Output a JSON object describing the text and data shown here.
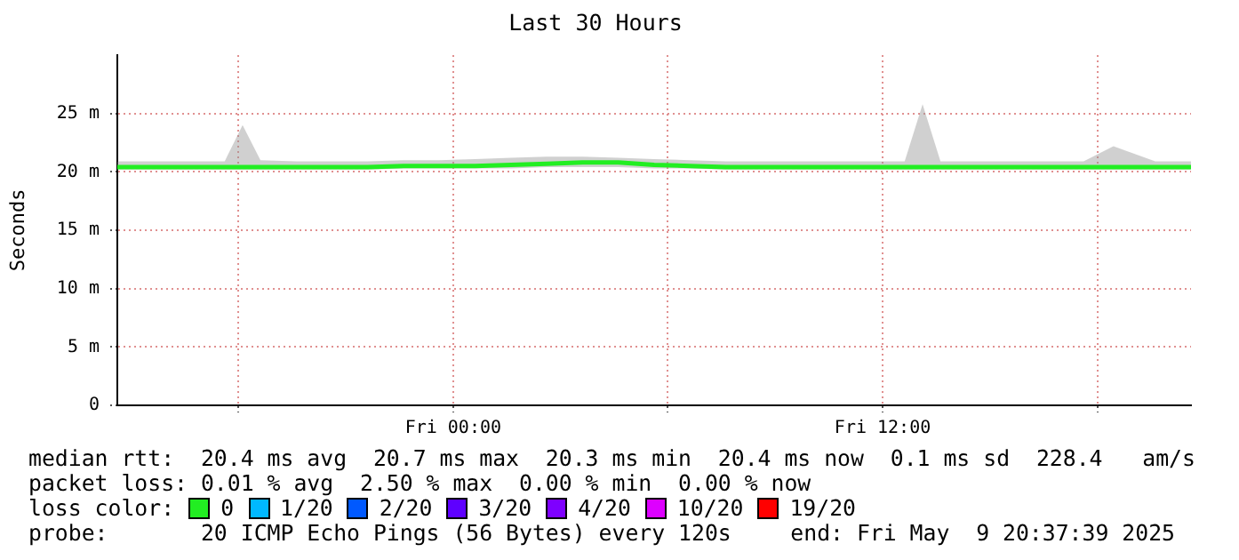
{
  "chart_data": {
    "type": "line",
    "title": "Last 30 Hours",
    "ylabel": "Seconds",
    "legend_title": "loss color:",
    "xlim": [
      "2025-05-08T14:37",
      "2025-05-09T20:37"
    ],
    "xticks": [
      {
        "value": "2025-05-08T18:00",
        "label": null
      },
      {
        "value": "2025-05-09T00:00",
        "label": "Fri 00:00"
      },
      {
        "value": "2025-05-09T06:00",
        "label": null
      },
      {
        "value": "2025-05-09T12:00",
        "label": "Fri 12:00"
      },
      {
        "value": "2025-05-09T18:00",
        "label": null
      }
    ],
    "ylim": [
      0,
      30
    ],
    "yticks": [
      0,
      {
        "value": 5,
        "label": "5 m"
      },
      {
        "value": 10,
        "label": "10 m"
      },
      {
        "value": 15,
        "label": "15 m"
      },
      {
        "value": 20,
        "label": "20 m"
      },
      {
        "value": 25,
        "label": "25 m"
      }
    ],
    "grid": true,
    "legend": "bottom",
    "marker": "none",
    "line_style": "solid",
    "series": [
      {
        "name": "0",
        "color": "#22ee22",
        "x": [
          "2025-05-08T14:37",
          "2025-05-08T15:37",
          "2025-05-08T16:37",
          "2025-05-08T17:37",
          "2025-05-08T18:07",
          "2025-05-08T18:37",
          "2025-05-08T19:37",
          "2025-05-08T20:37",
          "2025-05-08T21:37",
          "2025-05-08T22:37",
          "2025-05-08T23:37",
          "2025-05-09T00:37",
          "2025-05-09T01:37",
          "2025-05-09T02:37",
          "2025-05-09T03:37",
          "2025-05-09T04:37",
          "2025-05-09T05:37",
          "2025-05-09T06:37",
          "2025-05-09T07:37",
          "2025-05-09T08:37",
          "2025-05-09T09:37",
          "2025-05-09T10:37",
          "2025-05-09T11:37",
          "2025-05-09T12:37",
          "2025-05-09T13:07",
          "2025-05-09T13:37",
          "2025-05-09T14:37",
          "2025-05-09T15:37",
          "2025-05-09T16:37",
          "2025-05-09T17:37",
          "2025-05-09T18:27",
          "2025-05-09T19:37",
          "2025-05-09T20:37"
        ],
        "values": [
          20.4,
          20.4,
          20.4,
          20.4,
          20.4,
          20.4,
          20.4,
          20.4,
          20.4,
          20.5,
          20.5,
          20.5,
          20.6,
          20.7,
          20.8,
          20.8,
          20.6,
          20.5,
          20.4,
          20.4,
          20.4,
          20.4,
          20.4,
          20.4,
          20.4,
          20.4,
          20.4,
          20.4,
          20.4,
          20.4,
          20.4,
          20.4,
          20.4
        ],
        "lower": [
          20.2,
          20.2,
          20.2,
          20.2,
          20.2,
          20.2,
          20.2,
          20.2,
          20.2,
          20.3,
          20.3,
          20.3,
          20.3,
          20.4,
          20.4,
          20.4,
          20.3,
          20.3,
          20.2,
          20.2,
          20.2,
          20.2,
          20.2,
          20.2,
          20.2,
          20.2,
          20.2,
          20.2,
          20.2,
          20.2,
          20.2,
          20.2,
          20.2
        ],
        "upper": [
          20.9,
          20.9,
          20.9,
          20.9,
          24.0,
          21.0,
          20.9,
          20.9,
          20.9,
          21.0,
          21.0,
          21.1,
          21.2,
          21.3,
          21.3,
          21.2,
          21.1,
          21.0,
          20.9,
          20.9,
          20.9,
          20.9,
          20.9,
          20.9,
          25.8,
          20.9,
          20.9,
          20.9,
          20.9,
          20.9,
          22.2,
          20.9,
          20.9
        ]
      },
      {
        "name": "1/20",
        "color": "#00b8ff"
      },
      {
        "name": "2/20",
        "color": "#0059ff"
      },
      {
        "name": "3/20",
        "color": "#5e00ff"
      },
      {
        "name": "4/20",
        "color": "#7e00ff"
      },
      {
        "name": "10/20",
        "color": "#dd00ff"
      },
      {
        "name": "19/20",
        "color": "#ff0000"
      }
    ],
    "annotations": [
      "median rtt:  20.4 ms avg  20.7 ms max  20.3 ms min  20.4 ms now  0.1 ms sd  228.4   am/s",
      "packet loss: 0.01 % avg  2.50 % max  0.00 % min  0.00 % now",
      "probe:       20 ICMP Echo Pings (56 Bytes) every 120s",
      "end: Fri May  9 20:37:39 2025"
    ]
  }
}
